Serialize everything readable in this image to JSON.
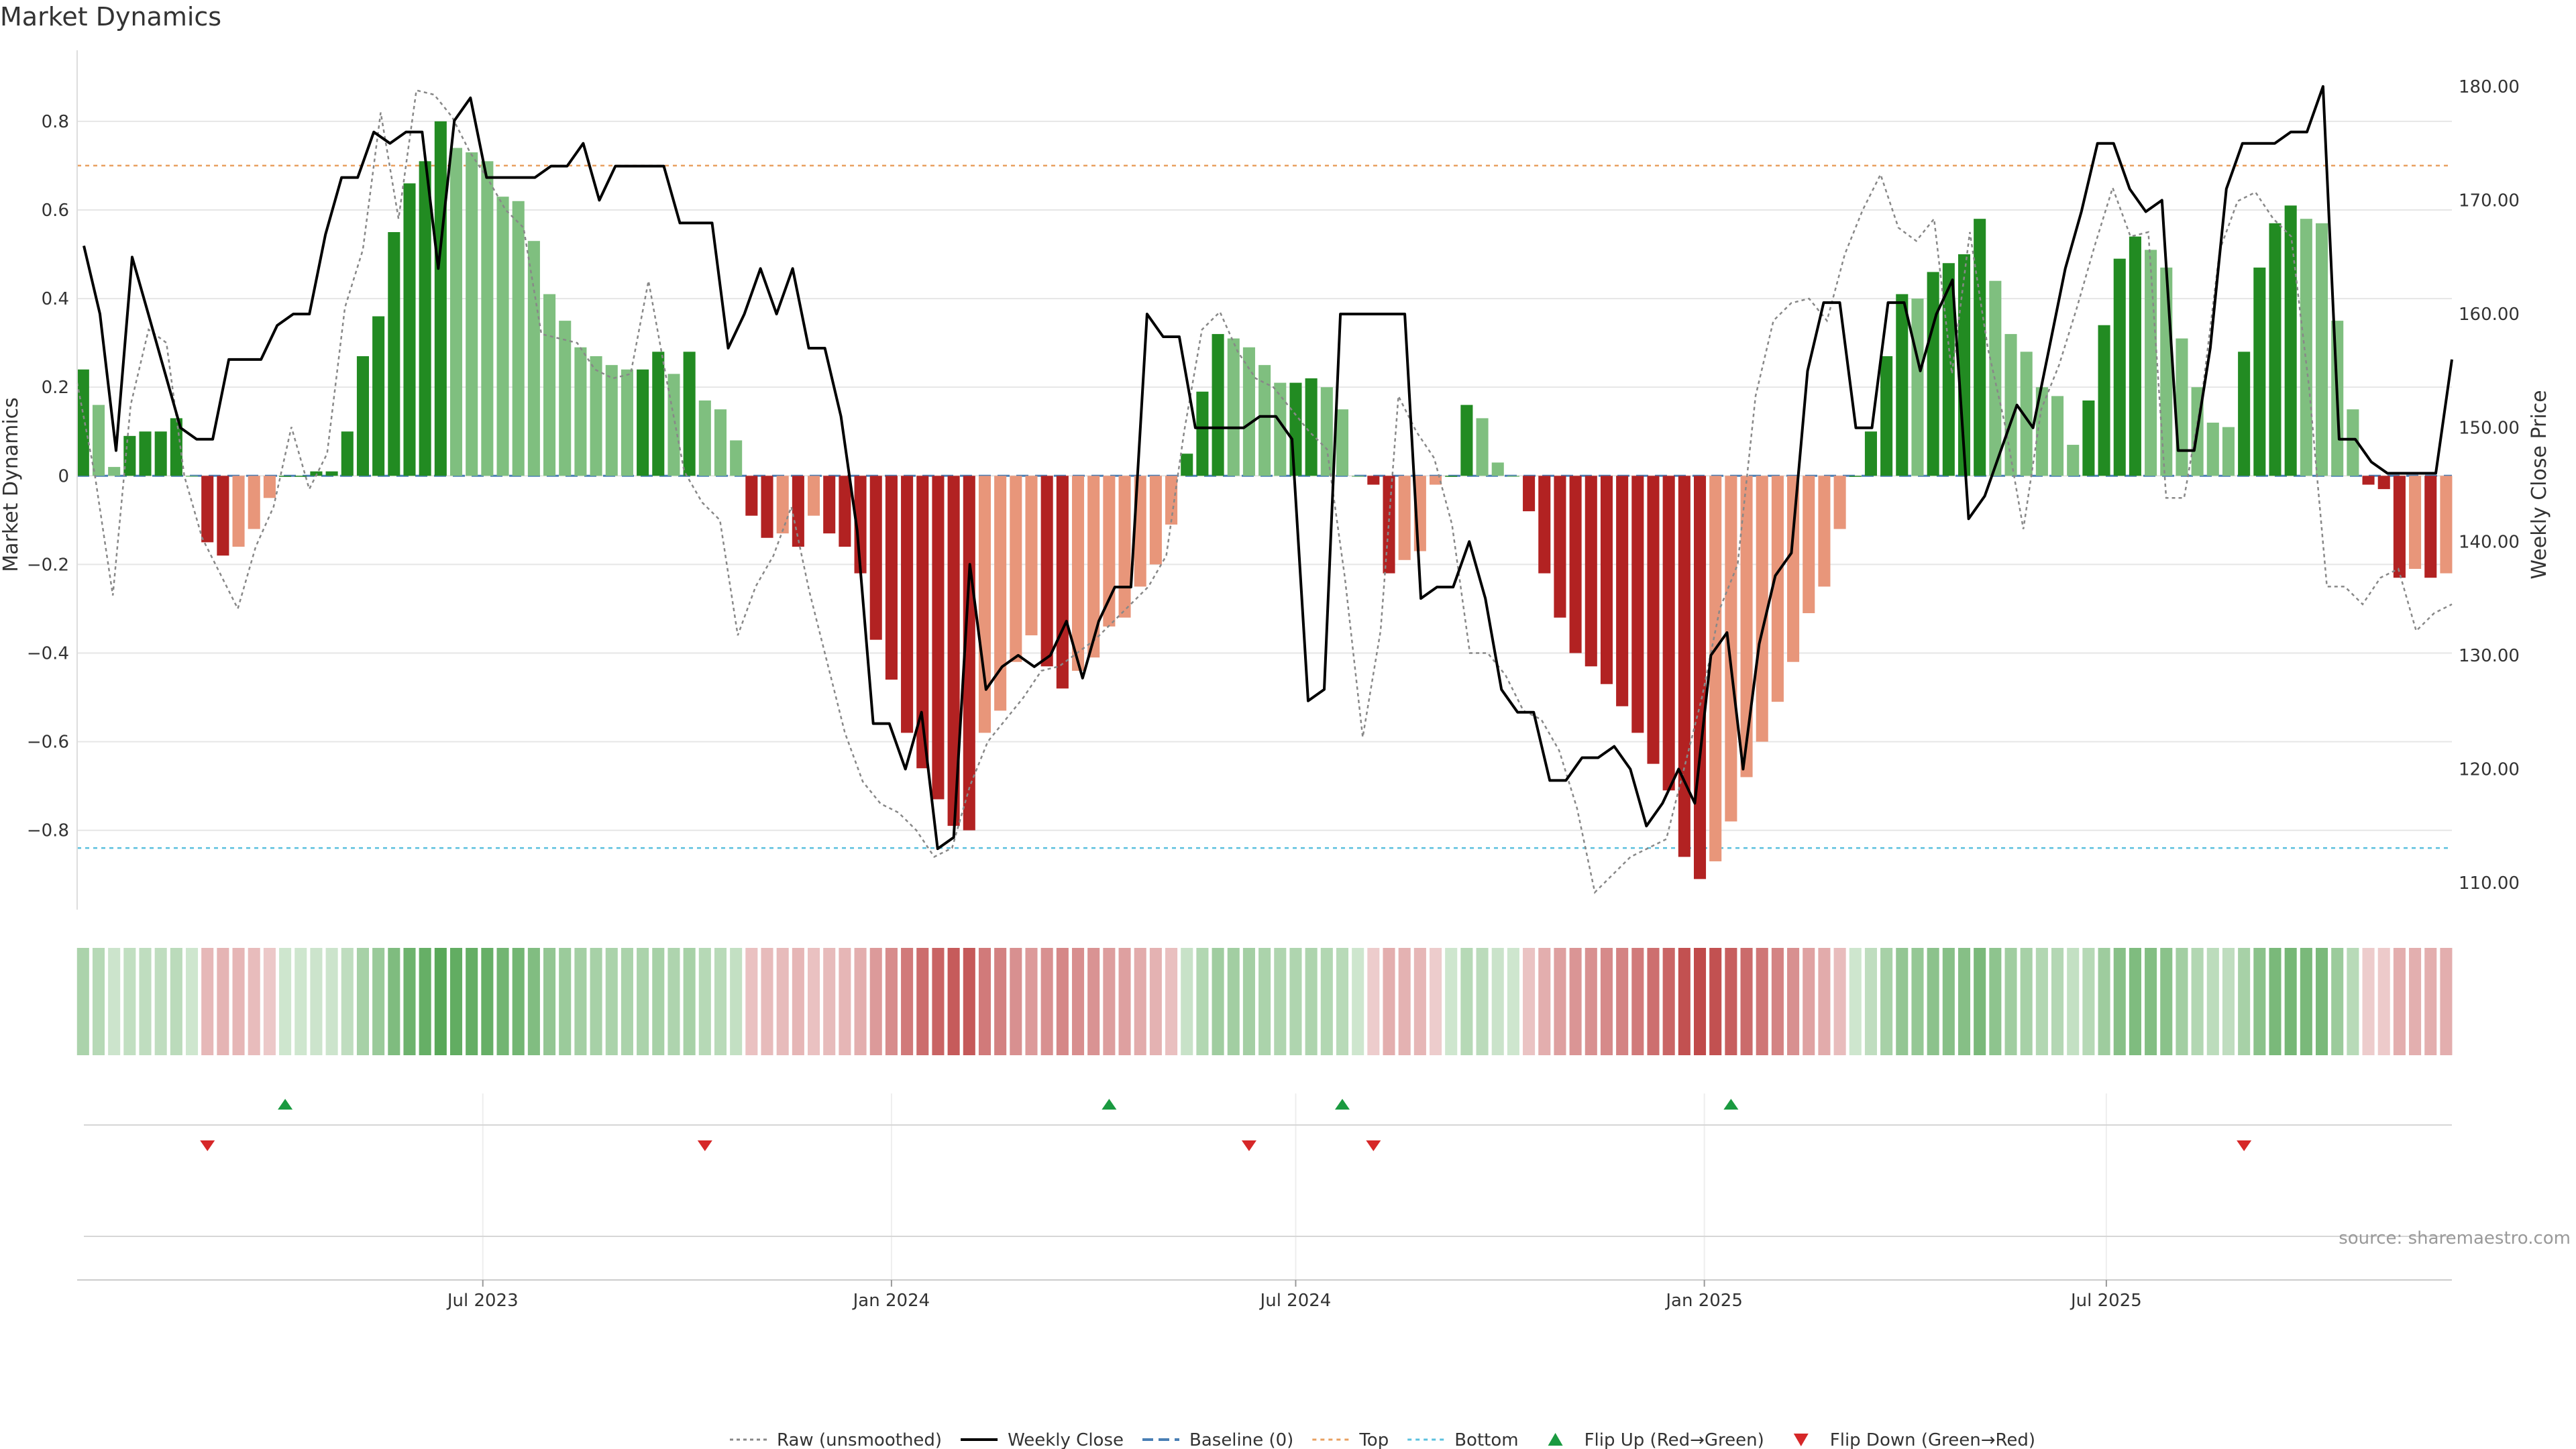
{
  "title": "Market Dynamics",
  "source_note": "source: sharemaestro.com",
  "colors": {
    "strong_green": "#228b22",
    "light_green": "#7fbf7f",
    "strong_red": "#b22222",
    "light_red": "#e8967a",
    "close_line": "#000000",
    "raw_line": "#888888",
    "baseline": "#4a7fb5",
    "top": "#e8a060",
    "bottom": "#5bc0de",
    "flip_up": "#1a9a40",
    "flip_down": "#d62728",
    "grid": "#e6e6e6"
  },
  "chart_data": {
    "type": "bar",
    "title": "Market Dynamics",
    "y_left_label": "Market Dynamics",
    "y_right_label": "Weekly Close Price",
    "ylim_left": [
      -0.97,
      0.93
    ],
    "ylim_right": [
      108.0,
      182.0
    ],
    "left_ticks": [
      "0.8",
      "0.6",
      "0.4",
      "0.2",
      "0",
      "−0.2",
      "−0.4",
      "−0.6",
      "−0.8"
    ],
    "left_tick_values": [
      0.8,
      0.6,
      0.4,
      0.2,
      0,
      -0.2,
      -0.4,
      -0.6,
      -0.8
    ],
    "right_ticks": [
      "180.00",
      "170.00",
      "160.00",
      "150.00",
      "140.00",
      "130.00",
      "120.00",
      "110.00"
    ],
    "right_tick_values": [
      180,
      170,
      160,
      150,
      140,
      130,
      120,
      110
    ],
    "x_start": "2023-01-02",
    "x_ticks": [
      {
        "label": "Jul 2023",
        "date": "2023-07-01"
      },
      {
        "label": "Jan 2024",
        "date": "2024-01-01"
      },
      {
        "label": "Jul 2024",
        "date": "2024-07-01"
      },
      {
        "label": "Jan 2025",
        "date": "2025-01-01"
      },
      {
        "label": "Jul 2025",
        "date": "2025-07-01"
      }
    ],
    "top_level": 0.7,
    "bottom_level": -0.84,
    "baseline": 0,
    "bar_values": [
      0.24,
      0.16,
      0.02,
      0.09,
      0.1,
      0.1,
      0.13,
      0,
      -0.15,
      -0.18,
      -0.16,
      -0.12,
      -0.05,
      0,
      0,
      0.01,
      0.01,
      0.1,
      0.27,
      0.36,
      0.55,
      0.66,
      0.71,
      0.8,
      0.74,
      0.73,
      0.71,
      0.63,
      0.62,
      0.53,
      0.41,
      0.35,
      0.29,
      0.27,
      0.25,
      0.24,
      0.24,
      0.28,
      0.23,
      0.28,
      0.17,
      0.15,
      0.08,
      -0.09,
      -0.14,
      -0.13,
      -0.16,
      -0.09,
      -0.13,
      -0.16,
      -0.22,
      -0.37,
      -0.46,
      -0.58,
      -0.66,
      -0.73,
      -0.79,
      -0.8,
      -0.58,
      -0.53,
      -0.42,
      -0.36,
      -0.43,
      -0.48,
      -0.44,
      -0.41,
      -0.34,
      -0.32,
      -0.25,
      -0.2,
      -0.11,
      0.05,
      0.19,
      0.32,
      0.31,
      0.29,
      0.25,
      0.21,
      0.21,
      0.22,
      0.2,
      0.15,
      0.0,
      -0.02,
      -0.22,
      -0.19,
      -0.17,
      -0.02,
      0.0,
      0.16,
      0.13,
      0.03,
      0,
      -0.08,
      -0.22,
      -0.32,
      -0.4,
      -0.43,
      -0.47,
      -0.52,
      -0.58,
      -0.65,
      -0.71,
      -0.86,
      -0.91,
      -0.87,
      -0.78,
      -0.68,
      -0.6,
      -0.51,
      -0.42,
      -0.31,
      -0.25,
      -0.12,
      0.0,
      0.1,
      0.27,
      0.41,
      0.4,
      0.46,
      0.48,
      0.5,
      0.58,
      0.44,
      0.32,
      0.28,
      0.2,
      0.18,
      0.07,
      0.17,
      0.34,
      0.49,
      0.54,
      0.51,
      0.47,
      0.31,
      0.2,
      0.12,
      0.11,
      0.28,
      0.47,
      0.57,
      0.61,
      0.58,
      0.57,
      0.35,
      0.15,
      -0.02,
      -0.03,
      -0.23,
      -0.21,
      -0.23,
      -0.22
    ],
    "raw_values": [
      0.21,
      0.0,
      -0.27,
      0.16,
      0.33,
      0.3,
      0.0,
      -0.14,
      -0.22,
      -0.3,
      -0.16,
      -0.07,
      0.11,
      -0.03,
      0.05,
      0.38,
      0.51,
      0.82,
      0.58,
      0.87,
      0.86,
      0.81,
      0.73,
      0.67,
      0.6,
      0.56,
      0.32,
      0.31,
      0.3,
      0.24,
      0.22,
      0.23,
      0.44,
      0.22,
      0.01,
      -0.06,
      -0.1,
      -0.36,
      -0.25,
      -0.18,
      -0.07,
      -0.26,
      -0.42,
      -0.58,
      -0.69,
      -0.74,
      -0.76,
      -0.8,
      -0.86,
      -0.84,
      -0.7,
      -0.6,
      -0.55,
      -0.5,
      -0.44,
      -0.43,
      -0.4,
      -0.37,
      -0.33,
      -0.29,
      -0.25,
      -0.18,
      0.1,
      0.33,
      0.37,
      0.28,
      0.22,
      0.2,
      0.15,
      0.1,
      0.06,
      -0.23,
      -0.59,
      -0.35,
      0.18,
      0.1,
      0.04,
      -0.11,
      -0.4,
      -0.4,
      -0.45,
      -0.53,
      -0.55,
      -0.62,
      -0.75,
      -0.94,
      -0.9,
      -0.86,
      -0.84,
      -0.82,
      -0.66,
      -0.5,
      -0.3,
      -0.2,
      0.18,
      0.35,
      0.39,
      0.4,
      0.35,
      0.5,
      0.6,
      0.68,
      0.56,
      0.53,
      0.58,
      0.23,
      0.55,
      0.29,
      0.11,
      -0.12,
      0.15,
      0.25,
      0.38,
      0.52,
      0.65,
      0.54,
      0.55,
      -0.05,
      -0.05,
      0.18,
      0.51,
      0.62,
      0.64,
      0.58,
      0.54,
      0.2,
      -0.25,
      -0.25,
      -0.29,
      -0.23,
      -0.21,
      -0.35,
      -0.31,
      -0.29
    ],
    "close_values": [
      166,
      160,
      148,
      165,
      160,
      155,
      150,
      149,
      149,
      156,
      156,
      156,
      159,
      160,
      160,
      167,
      172,
      172,
      176,
      175,
      176,
      176,
      164,
      177,
      179,
      172,
      172,
      172,
      172,
      173,
      173,
      175,
      170,
      173,
      173,
      173,
      173,
      168,
      168,
      168,
      157,
      160,
      164,
      160,
      164,
      157,
      157,
      151,
      141,
      124,
      124,
      120,
      125,
      113,
      114,
      138,
      127,
      129,
      130,
      129,
      130,
      133,
      128,
      133,
      136,
      136,
      160,
      158,
      158,
      150,
      150,
      150,
      150,
      151,
      151,
      149,
      126,
      127,
      160,
      160,
      160,
      160,
      160,
      135,
      136,
      136,
      140,
      135,
      127,
      125,
      125,
      119,
      119,
      121,
      121,
      122,
      120,
      115,
      117,
      120,
      117,
      130,
      132,
      120,
      131,
      137,
      139,
      155,
      161,
      161,
      150,
      150,
      161,
      161,
      155,
      160,
      163,
      142,
      144,
      148,
      152,
      150,
      157,
      164,
      169,
      175,
      175,
      171,
      169,
      170,
      148,
      148,
      157,
      171,
      175,
      175,
      175,
      176,
      176,
      180,
      149,
      149,
      147,
      146,
      146,
      146,
      146,
      156
    ],
    "flips": [
      {
        "index": 8,
        "direction": "down"
      },
      {
        "index": 13,
        "direction": "up"
      },
      {
        "index": 40,
        "direction": "down"
      },
      {
        "index": 66,
        "direction": "up"
      },
      {
        "index": 75,
        "direction": "down"
      },
      {
        "index": 81,
        "direction": "up"
      },
      {
        "index": 83,
        "direction": "down"
      },
      {
        "index": 106,
        "direction": "up"
      },
      {
        "index": 139,
        "direction": "down"
      }
    ]
  },
  "legend": [
    {
      "label": "Raw (unsmoothed)",
      "style": "raw"
    },
    {
      "label": "Weekly Close",
      "style": "close"
    },
    {
      "label": "Baseline (0)",
      "style": "baseline"
    },
    {
      "label": "Top",
      "style": "top"
    },
    {
      "label": "Bottom",
      "style": "bottom"
    },
    {
      "label": "Flip Up (Red→Green)",
      "style": "flip-up"
    },
    {
      "label": "Flip Down (Green→Red)",
      "style": "flip-down"
    }
  ]
}
